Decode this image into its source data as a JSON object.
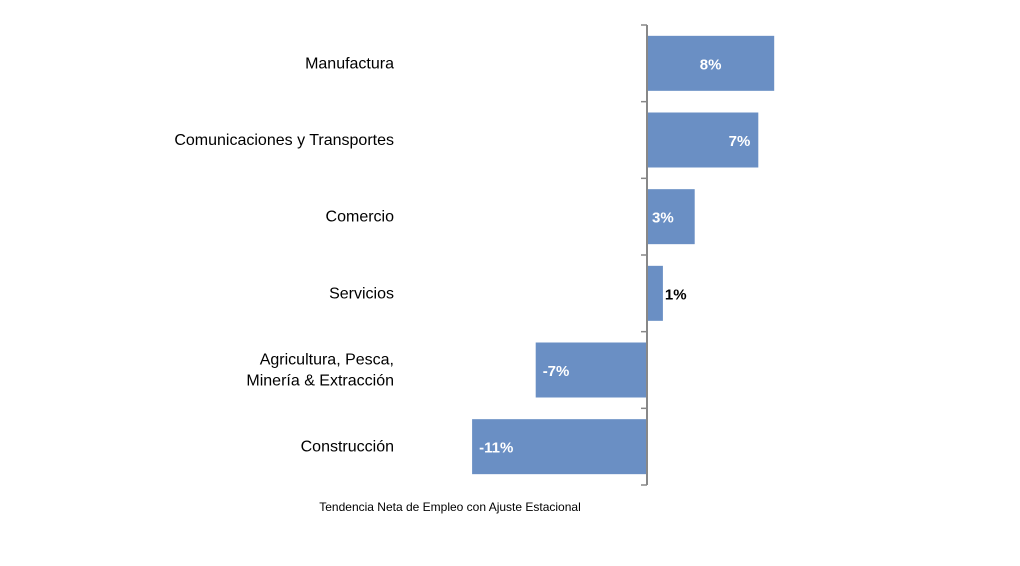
{
  "chart_data": {
    "type": "bar",
    "orientation": "horizontal",
    "categories": [
      "Manufactura",
      "Comunicaciones y Transportes",
      "Comercio",
      "Servicios",
      "Agricultura, Pesca,\nMinería & Extracción",
      "Construcción"
    ],
    "values": [
      8,
      7,
      3,
      1,
      -7,
      -11
    ],
    "value_labels": [
      "8%",
      "7%",
      "3%",
      "1%",
      "-7%",
      "-11%"
    ],
    "xlabel": "Tendencia Neta de Empleo con Ajuste Estacional",
    "ylabel": "",
    "title": "",
    "bar_color": "#6a8fc4",
    "axis_color": "#888888",
    "grid": false,
    "legend": "none"
  }
}
